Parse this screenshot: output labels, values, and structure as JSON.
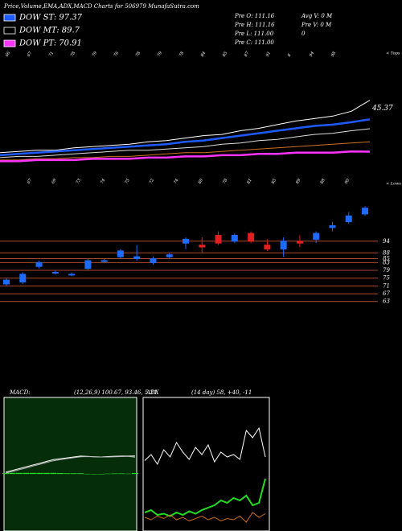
{
  "chart_data": [
    {
      "type": "line",
      "title": "Price,Volume,EMA,ADX,MACD Charts for 506979 MunafaSutra.com",
      "annotations": [
        "Pre O: 111.16",
        "Pre H: 111.16",
        "Pre L: 111.00",
        "Pre C: 111.00",
        "Avg V: 0 M",
        "Pre V: 0 M",
        "0"
      ],
      "end_label": "45.37",
      "top_note": "< Tops",
      "bottom_note": "< Lows",
      "top_labels": [
        "66",
        "67",
        "71",
        "78",
        "79",
        "76",
        "78",
        "79",
        "78",
        "84",
        "85",
        "87",
        "91",
        "8",
        "94",
        "98"
      ],
      "bottom_labels": [
        "67",
        "69",
        "73",
        "74",
        "75",
        "72",
        "74",
        "80",
        "78",
        "81",
        "85",
        "89",
        "88",
        "90"
      ],
      "ylim": [
        60,
        120
      ],
      "series": [
        {
          "color": "#ffffff",
          "values": [
            70,
            71,
            72,
            72,
            74,
            75,
            76,
            77,
            79,
            80,
            82,
            84,
            85,
            88,
            90,
            93,
            96,
            98,
            100,
            104,
            113
          ]
        },
        {
          "name": "DOW ST: 97.37",
          "color": "#1e5bff",
          "values": [
            68,
            69,
            70,
            71,
            72,
            73,
            74,
            75,
            76,
            77,
            79,
            80,
            82,
            84,
            86,
            88,
            90,
            92,
            93,
            95,
            97.37
          ]
        },
        {
          "name": "DOW MT: 89.7",
          "color": "#000000",
          "line_color": "#dddddd",
          "values": [
            66,
            67,
            67,
            68,
            69,
            70,
            71,
            72,
            72,
            73,
            74,
            75,
            77,
            78,
            80,
            81,
            83,
            85,
            86,
            88,
            89.7
          ]
        },
        {
          "color": "#d07020",
          "values": [
            64,
            64,
            65,
            65,
            66,
            66,
            67,
            67,
            68,
            69,
            70,
            70,
            71,
            72,
            73,
            74,
            75,
            76,
            77,
            78,
            79
          ]
        },
        {
          "name": "DOW PT: 70.91",
          "color": "#ff33ff",
          "values": [
            63,
            63,
            64,
            64,
            64,
            65,
            65,
            65,
            66,
            66,
            67,
            67,
            68,
            68,
            69,
            69,
            70,
            70,
            70,
            71,
            70.91
          ]
        }
      ]
    },
    {
      "type": "candlestick",
      "ylim": [
        60,
        115
      ],
      "yticks": [
        94,
        88,
        85,
        83,
        79,
        75,
        71,
        67,
        63
      ],
      "up_color": "#1e6bff",
      "down_color": "#e02020",
      "level_color": "#b04a2a",
      "open": [
        72,
        73,
        81,
        78,
        77,
        80,
        84,
        86,
        85,
        83,
        86,
        93,
        92,
        97,
        94,
        98,
        92,
        90,
        94,
        95,
        101,
        104,
        108
      ],
      "high": [
        75,
        78,
        84,
        79,
        78,
        85,
        85,
        90,
        92,
        86,
        88,
        96,
        96,
        99,
        98,
        99,
        95,
        96,
        97,
        99,
        104,
        109,
        112
      ],
      "low": [
        71,
        72,
        80,
        77,
        76,
        79,
        83,
        85,
        84,
        82,
        85,
        90,
        88,
        92,
        93,
        93,
        89,
        86,
        91,
        93,
        99,
        103,
        107
      ],
      "close": [
        74,
        77,
        83,
        78,
        77,
        84,
        84,
        89,
        86,
        85,
        87,
        95,
        91,
        93,
        97,
        94,
        90,
        94,
        93,
        98,
        102,
        107,
        111
      ]
    },
    {
      "type": "macd",
      "title": "MACD:",
      "subtitle": "(12,26,9) 100.67, 93.46, 5.21",
      "ylim": [
        -300,
        400
      ],
      "hist_color": "#22dd22",
      "series": [
        {
          "color": "#ffffff",
          "values": [
            10,
            20,
            30,
            40,
            50,
            60,
            70,
            80,
            85,
            90,
            95,
            100,
            98,
            96,
            95,
            97,
            99,
            100,
            100,
            100.67
          ]
        },
        {
          "color": "#bbbbbb",
          "values": [
            5,
            14,
            24,
            34,
            44,
            54,
            64,
            74,
            80,
            86,
            91,
            96,
            97,
            96,
            95,
            95,
            96,
            97,
            98,
            93.46
          ]
        }
      ],
      "histogram": [
        5,
        6,
        6,
        6,
        6,
        6,
        6,
        6,
        5,
        4,
        4,
        4,
        1,
        0,
        0,
        2,
        3,
        3,
        2,
        5.21
      ]
    },
    {
      "type": "adx",
      "title": "ADX",
      "subtitle": "(14 day) 58, +40, -11",
      "ylim": [
        0,
        100
      ],
      "series": [
        {
          "color": "#ffffff",
          "values": [
            55,
            60,
            52,
            64,
            58,
            70,
            62,
            56,
            66,
            60,
            68,
            54,
            62,
            58,
            60,
            56,
            80,
            74,
            82,
            58
          ]
        },
        {
          "color": "#22dd22",
          "values": [
            12,
            14,
            10,
            11,
            9,
            12,
            10,
            13,
            11,
            14,
            16,
            18,
            22,
            20,
            24,
            22,
            26,
            18,
            20,
            40
          ]
        },
        {
          "color": "#d07020",
          "values": [
            8,
            6,
            9,
            7,
            10,
            6,
            8,
            5,
            7,
            9,
            6,
            8,
            5,
            7,
            6,
            9,
            4,
            12,
            8,
            11
          ]
        }
      ]
    }
  ]
}
